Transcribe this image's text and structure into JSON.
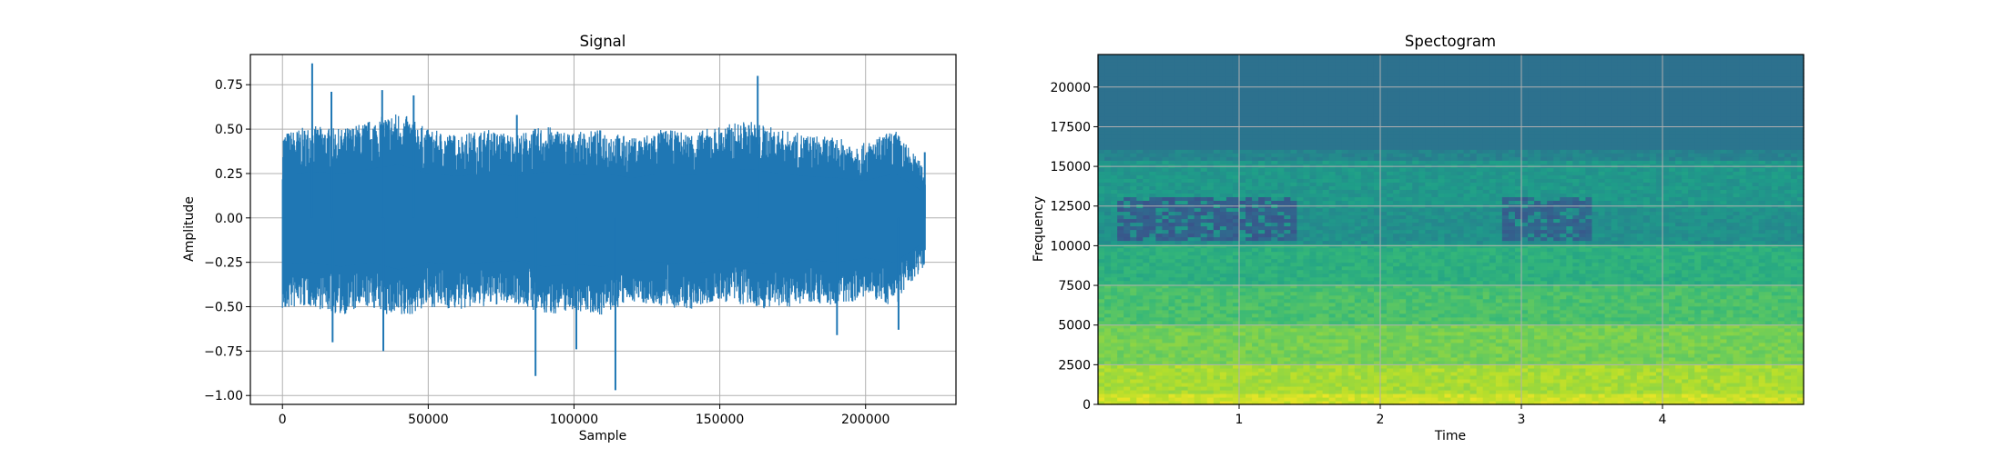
{
  "chart_data": [
    {
      "type": "line",
      "title": "Signal",
      "xlabel": "Sample",
      "ylabel": "Amplitude",
      "xlim": [
        -11000,
        231000
      ],
      "ylim": [
        -1.05,
        0.92
      ],
      "xticks": [
        0,
        50000,
        100000,
        150000,
        200000
      ],
      "xtick_labels": [
        "0",
        "50000",
        "100000",
        "150000",
        "200000"
      ],
      "yticks": [
        -1.0,
        -0.75,
        -0.5,
        -0.25,
        0.0,
        0.25,
        0.5,
        0.75
      ],
      "ytick_labels": [
        "−1.00",
        "−0.75",
        "−0.50",
        "−0.25",
        "0.00",
        "0.25",
        "0.50",
        "0.75"
      ],
      "grid": true,
      "color": "#1f77b4",
      "series": [
        {
          "x": [
            0,
            10000,
            20000,
            30000,
            40000,
            50000,
            60000,
            70000,
            80000,
            90000,
            100000,
            110000,
            120000,
            130000,
            140000,
            150000,
            160000,
            170000,
            180000,
            190000,
            200000,
            210000,
            220500
          ],
          "upper": [
            0.48,
            0.52,
            0.5,
            0.55,
            0.6,
            0.5,
            0.47,
            0.5,
            0.47,
            0.52,
            0.48,
            0.5,
            0.45,
            0.5,
            0.48,
            0.52,
            0.55,
            0.5,
            0.47,
            0.45,
            0.42,
            0.5,
            0.28
          ],
          "lower": [
            -0.52,
            -0.5,
            -0.55,
            -0.5,
            -0.58,
            -0.5,
            -0.52,
            -0.5,
            -0.48,
            -0.55,
            -0.52,
            -0.55,
            -0.47,
            -0.5,
            -0.52,
            -0.47,
            -0.5,
            -0.52,
            -0.47,
            -0.5,
            -0.45,
            -0.5,
            -0.26
          ],
          "peaks": [
            {
              "x": 1000,
              "y": -0.5
            },
            {
              "x": 10200,
              "y": 0.87
            },
            {
              "x": 16800,
              "y": 0.71
            },
            {
              "x": 17200,
              "y": -0.7
            },
            {
              "x": 34200,
              "y": 0.72
            },
            {
              "x": 34600,
              "y": -0.75
            },
            {
              "x": 45000,
              "y": 0.69
            },
            {
              "x": 80400,
              "y": 0.58
            },
            {
              "x": 86800,
              "y": -0.89
            },
            {
              "x": 100800,
              "y": -0.74
            },
            {
              "x": 114200,
              "y": -0.97
            },
            {
              "x": 163000,
              "y": 0.8
            },
            {
              "x": 190200,
              "y": -0.66
            },
            {
              "x": 211300,
              "y": -0.63
            },
            {
              "x": 220300,
              "y": 0.37
            }
          ]
        }
      ]
    },
    {
      "type": "heatmap",
      "title": "Spectogram",
      "xlabel": "Time",
      "ylabel": "Frequency",
      "xlim": [
        0,
        5.0
      ],
      "ylim": [
        0,
        22050
      ],
      "xticks": [
        1,
        2,
        3,
        4
      ],
      "xtick_labels": [
        "1",
        "2",
        "3",
        "4"
      ],
      "yticks": [
        0,
        2500,
        5000,
        7500,
        10000,
        12500,
        15000,
        17500,
        20000
      ],
      "ytick_labels": [
        "0",
        "2500",
        "5000",
        "7500",
        "10000",
        "12500",
        "15000",
        "17500",
        "20000"
      ],
      "grid": true,
      "colormap": "viridis",
      "bands": [
        {
          "f_low": 0,
          "f_high": 800,
          "level": 0.93
        },
        {
          "f_low": 800,
          "f_high": 2500,
          "level": 0.87
        },
        {
          "f_low": 2500,
          "f_high": 5000,
          "level": 0.79
        },
        {
          "f_low": 5000,
          "f_high": 7500,
          "level": 0.71
        },
        {
          "f_low": 7500,
          "f_high": 10000,
          "level": 0.63
        },
        {
          "f_low": 10000,
          "f_high": 12500,
          "level": 0.5
        },
        {
          "f_low": 12500,
          "f_high": 15500,
          "level": 0.53
        },
        {
          "f_low": 15500,
          "f_high": 16000,
          "level": 0.45
        },
        {
          "f_low": 16000,
          "f_high": 17500,
          "level": 0.39
        },
        {
          "f_low": 17500,
          "f_high": 22050,
          "level": 0.37
        }
      ],
      "dark_patches": [
        {
          "t_start": 0.13,
          "t_end": 1.4,
          "f_low": 10400,
          "f_high": 13200,
          "level": 0.3
        },
        {
          "t_start": 2.85,
          "t_end": 3.52,
          "f_low": 10400,
          "f_high": 13200,
          "level": 0.32
        }
      ]
    }
  ]
}
